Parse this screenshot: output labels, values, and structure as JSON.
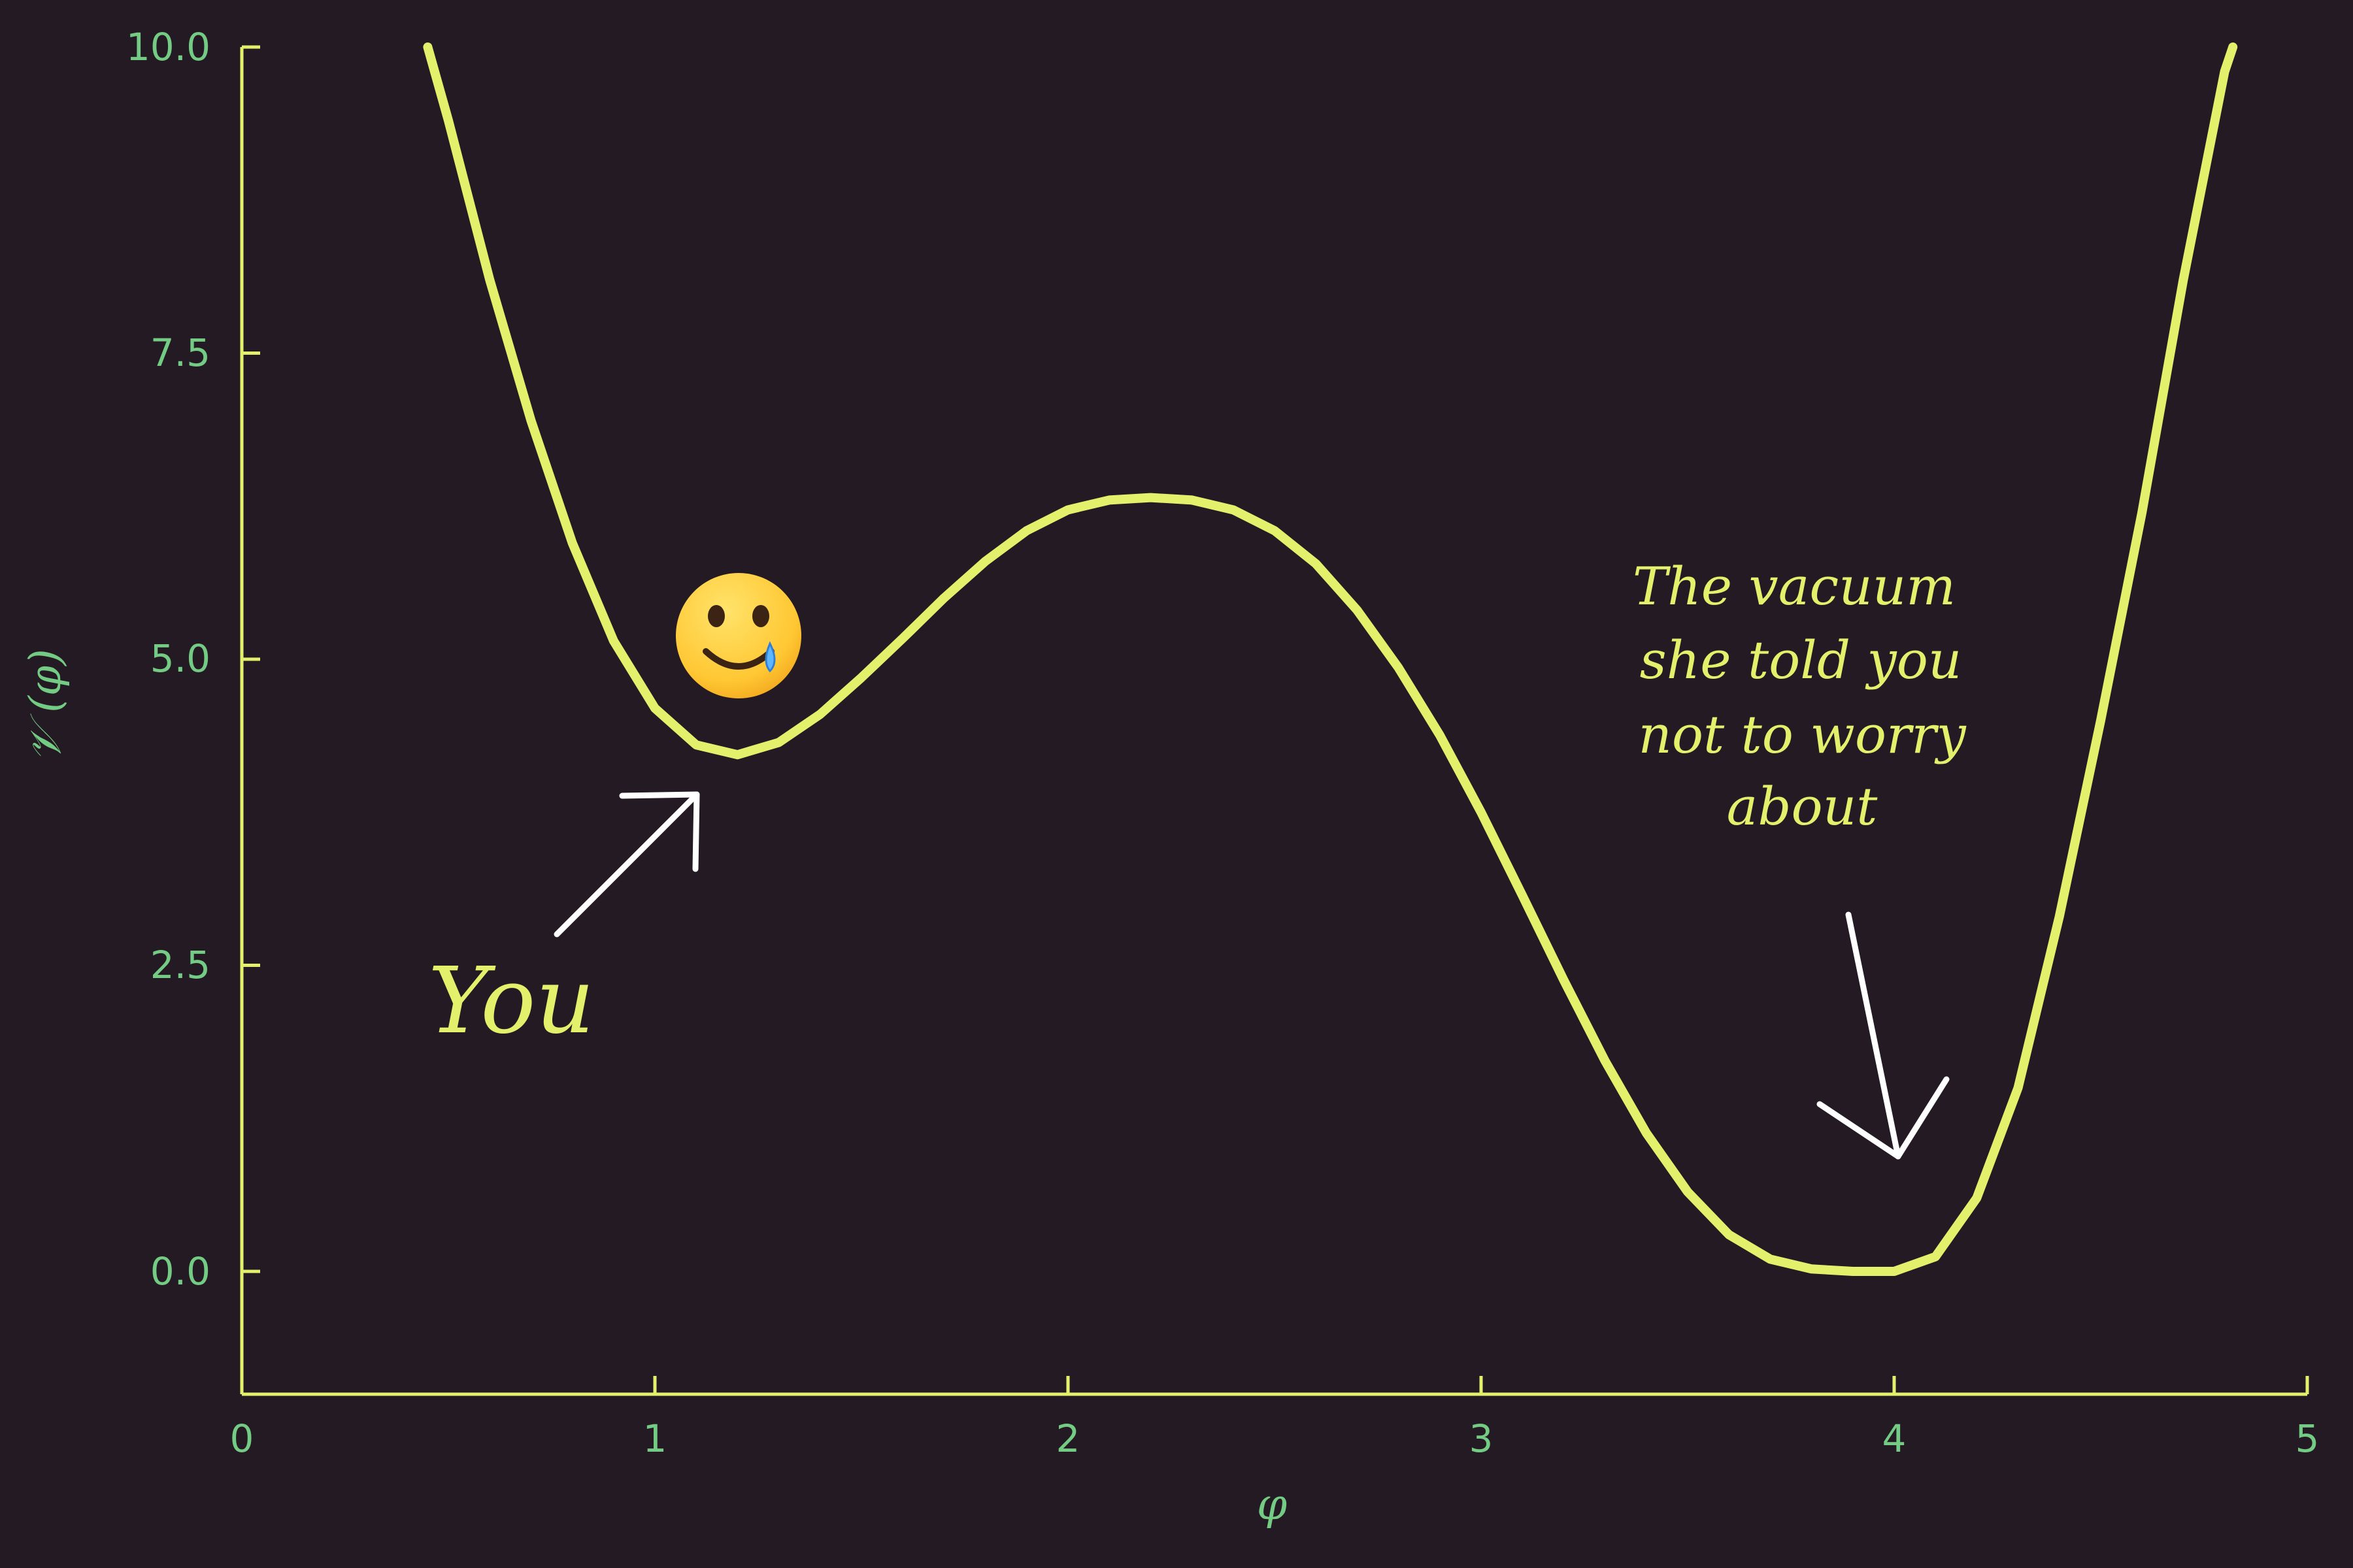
{
  "chart_data": {
    "type": "line",
    "title": "",
    "xlabel": "φ",
    "ylabel": "𝒱 (φ)",
    "xlim": [
      0,
      5
    ],
    "ylim": [
      -1,
      10
    ],
    "x_ticks": [
      "0",
      "1",
      "2",
      "3",
      "4",
      "5"
    ],
    "y_ticks": [
      "0.0",
      "2.5",
      "5.0",
      "7.5",
      "10.0"
    ],
    "grid": false,
    "legend": "none",
    "series": [
      {
        "x": [
          0.45,
          0.5,
          0.6,
          0.7,
          0.8,
          0.9,
          1.0,
          1.1,
          1.2,
          1.3,
          1.4,
          1.5,
          1.6,
          1.7,
          1.8,
          1.9,
          2.0,
          2.1,
          2.2,
          2.3,
          2.4,
          2.5,
          2.6,
          2.7,
          2.8,
          2.9,
          3.0,
          3.1,
          3.2,
          3.3,
          3.4,
          3.5,
          3.6,
          3.7,
          3.8,
          3.9,
          4.0,
          4.1,
          4.2,
          4.3,
          4.4,
          4.5,
          4.6,
          4.7,
          4.8,
          4.82
        ],
        "values": [
          10.0,
          9.4,
          8.1,
          6.95,
          5.95,
          5.15,
          4.6,
          4.3,
          4.22,
          4.32,
          4.55,
          4.85,
          5.17,
          5.5,
          5.8,
          6.05,
          6.22,
          6.3,
          6.32,
          6.3,
          6.22,
          6.05,
          5.78,
          5.4,
          4.93,
          4.38,
          3.75,
          3.07,
          2.38,
          1.72,
          1.13,
          0.65,
          0.3,
          0.1,
          0.02,
          0.0,
          0.0,
          0.12,
          0.6,
          1.5,
          2.9,
          4.5,
          6.2,
          8.1,
          9.8,
          10.0
        ]
      }
    ],
    "annotations": {
      "you_label": "You",
      "true_vacuum_label": [
        "The vacuum",
        "she told you",
        "not to worry",
        "about"
      ],
      "emoji": "🥲"
    },
    "colors": {
      "background": "#241a24",
      "curve": "#e2f06c",
      "axes": "#e2f06c",
      "ticks_text": "#74cc84",
      "arrows": "#ffffff"
    }
  }
}
